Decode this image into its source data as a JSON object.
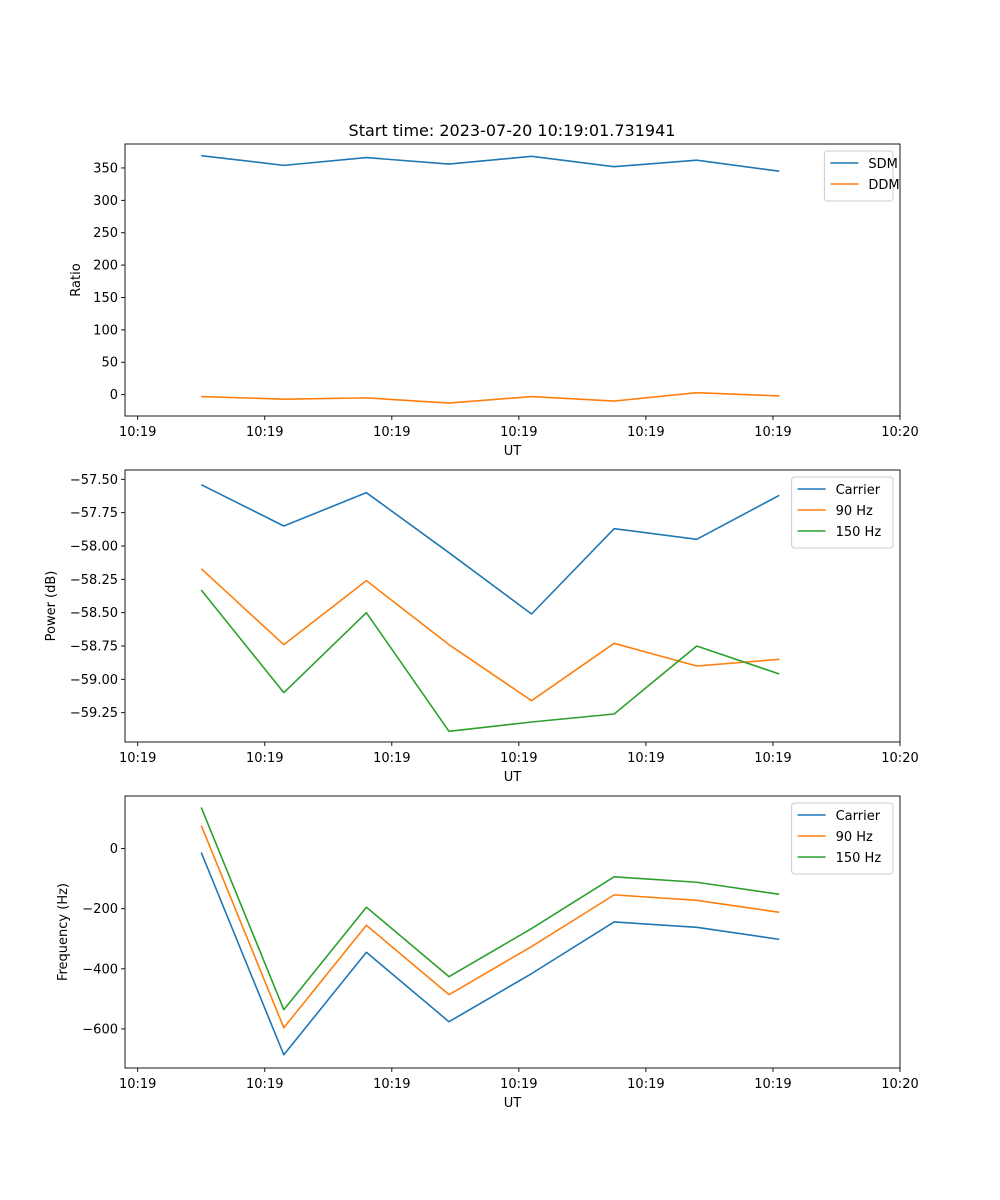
{
  "figure_title": "Start time: 2023-07-20 10:19:01.731941",
  "chart_data": [
    {
      "type": "line",
      "title": "Start time: 2023-07-20 10:19:01.731941",
      "xlabel": "UT",
      "ylabel": "Ratio",
      "x": [
        0.5,
        1.15,
        1.8,
        2.45,
        3.1,
        3.75,
        4.4,
        5.05
      ],
      "xlim": [
        -0.1,
        6.0
      ],
      "x_ticks": [
        0,
        1,
        2,
        3,
        4,
        5,
        6
      ],
      "x_tick_labels": [
        "10:19",
        "10:19",
        "10:19",
        "10:19",
        "10:19",
        "10:19",
        "10:20"
      ],
      "ylim": [
        -33,
        387
      ],
      "y_ticks": [
        0,
        50,
        100,
        150,
        200,
        250,
        300,
        350
      ],
      "y_tick_labels": [
        "0",
        "50",
        "100",
        "150",
        "200",
        "250",
        "300",
        "350"
      ],
      "legend_position": "top-right",
      "series": [
        {
          "name": "SDM",
          "color": "#1f77b4",
          "values": [
            369,
            354,
            366,
            356,
            368,
            352,
            362,
            345
          ]
        },
        {
          "name": "DDM",
          "color": "#ff7f0e",
          "values": [
            -3,
            -7,
            -5,
            -13,
            -3,
            -10,
            3,
            -2
          ]
        }
      ]
    },
    {
      "type": "line",
      "title": "",
      "xlabel": "UT",
      "ylabel": "Power (dB)",
      "x": [
        0.5,
        1.15,
        1.8,
        2.45,
        3.1,
        3.75,
        4.4,
        5.05
      ],
      "xlim": [
        -0.1,
        6.0
      ],
      "x_ticks": [
        0,
        1,
        2,
        3,
        4,
        5,
        6
      ],
      "x_tick_labels": [
        "10:19",
        "10:19",
        "10:19",
        "10:19",
        "10:19",
        "10:19",
        "10:20"
      ],
      "ylim": [
        -59.47,
        -57.43
      ],
      "y_ticks": [
        -57.5,
        -57.75,
        -58.0,
        -58.25,
        -58.5,
        -58.75,
        -59.0,
        -59.25
      ],
      "y_tick_labels": [
        "−57.50",
        "−57.75",
        "−58.00",
        "−58.25",
        "−58.50",
        "−58.75",
        "−59.00",
        "−59.25"
      ],
      "legend_position": "top-right",
      "series": [
        {
          "name": "Carrier",
          "color": "#1f77b4",
          "values": [
            -57.54,
            -57.85,
            -57.6,
            -58.05,
            -58.51,
            -57.87,
            -57.95,
            -57.62
          ]
        },
        {
          "name": "90 Hz",
          "color": "#ff7f0e",
          "values": [
            -58.17,
            -58.74,
            -58.26,
            -58.74,
            -59.16,
            -58.73,
            -58.9,
            -58.85
          ]
        },
        {
          "name": "150 Hz",
          "color": "#2ca02c",
          "values": [
            -58.33,
            -59.1,
            -58.5,
            -59.39,
            -59.32,
            -59.26,
            -58.75,
            -58.96
          ]
        }
      ]
    },
    {
      "type": "line",
      "title": "",
      "xlabel": "UT",
      "ylabel": "Frequency (Hz)",
      "x": [
        0.5,
        1.15,
        1.8,
        2.45,
        3.1,
        3.75,
        4.4,
        5.05
      ],
      "xlim": [
        -0.1,
        6.0
      ],
      "x_ticks": [
        0,
        1,
        2,
        3,
        4,
        5,
        6
      ],
      "x_tick_labels": [
        "10:19",
        "10:19",
        "10:19",
        "10:19",
        "10:19",
        "10:19",
        "10:20"
      ],
      "ylim": [
        -730,
        175
      ],
      "y_ticks": [
        0,
        -200,
        -400,
        -600
      ],
      "y_tick_labels": [
        "0",
        "−200",
        "−400",
        "−600"
      ],
      "legend_position": "top-right",
      "series": [
        {
          "name": "Carrier",
          "color": "#1f77b4",
          "values": [
            -13,
            -686,
            -345,
            -576,
            -416,
            -244,
            -262,
            -302
          ]
        },
        {
          "name": "90 Hz",
          "color": "#ff7f0e",
          "values": [
            77,
            -596,
            -255,
            -486,
            -326,
            -154,
            -172,
            -212
          ]
        },
        {
          "name": "150 Hz",
          "color": "#2ca02c",
          "values": [
            137,
            -536,
            -195,
            -426,
            -266,
            -94,
            -112,
            -152
          ]
        }
      ]
    }
  ]
}
